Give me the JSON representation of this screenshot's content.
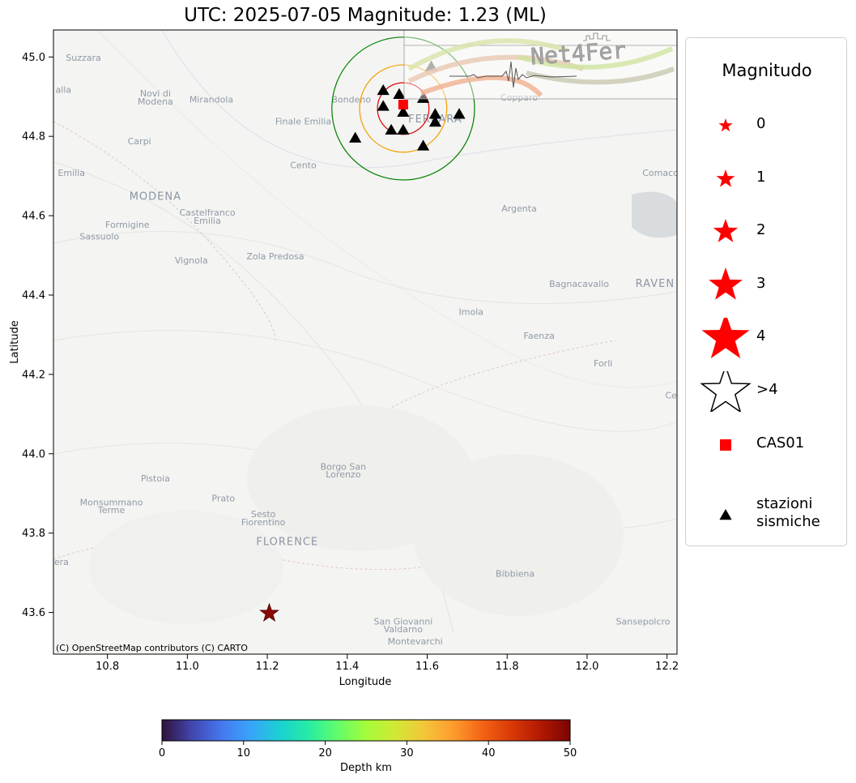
{
  "title": "UTC: 2025-07-05 Magnitude: 1.23 (ML)",
  "map": {
    "xlabel": "Longitude",
    "ylabel": "Latitude",
    "xlim": [
      10.665,
      12.225
    ],
    "ylim": [
      43.495,
      45.068
    ],
    "xticks": [
      "10.8",
      "11.0",
      "11.2",
      "11.4",
      "11.6",
      "11.8",
      "12.0",
      "12.2"
    ],
    "yticks": [
      "43.6",
      "43.8",
      "44.0",
      "44.2",
      "44.4",
      "44.6",
      "44.8",
      "45.0"
    ],
    "attribution": "(C) OpenStreetMap contributors (C) CARTO",
    "basemap_style": "CARTO light",
    "place_labels": [
      {
        "name": "Suzzara",
        "lon": 10.74,
        "lat": 44.99,
        "style": "small"
      },
      {
        "name": "Novi di",
        "lon": 10.92,
        "lat": 44.9,
        "style": "small"
      },
      {
        "name": "Modena",
        "lon": 10.92,
        "lat": 44.88,
        "style": "small"
      },
      {
        "name": "Mirandola",
        "lon": 11.06,
        "lat": 44.885,
        "style": "small"
      },
      {
        "name": "Bondeno",
        "lon": 11.41,
        "lat": 44.885,
        "style": "small"
      },
      {
        "name": "Copparo",
        "lon": 11.83,
        "lat": 44.89,
        "style": "small"
      },
      {
        "name": "Finale Emilia",
        "lon": 11.29,
        "lat": 44.83,
        "style": "small"
      },
      {
        "name": "FERRARA",
        "lon": 11.62,
        "lat": 44.835,
        "style": "big"
      },
      {
        "name": "Carpi",
        "lon": 10.88,
        "lat": 44.78,
        "style": "small"
      },
      {
        "name": "Cento",
        "lon": 11.29,
        "lat": 44.72,
        "style": "small"
      },
      {
        "name": "Emilia",
        "lon": 10.71,
        "lat": 44.7,
        "style": "small"
      },
      {
        "name": "Comacch",
        "lon": 12.19,
        "lat": 44.7,
        "style": "small"
      },
      {
        "name": "MODENA",
        "lon": 10.92,
        "lat": 44.64,
        "style": "big"
      },
      {
        "name": "Castelfranco",
        "lon": 11.05,
        "lat": 44.6,
        "style": "small"
      },
      {
        "name": "Emilia",
        "lon": 11.05,
        "lat": 44.58,
        "style": "small"
      },
      {
        "name": "Argenta",
        "lon": 11.83,
        "lat": 44.61,
        "style": "small"
      },
      {
        "name": "Formigine",
        "lon": 10.85,
        "lat": 44.57,
        "style": "small"
      },
      {
        "name": "Sassuolo",
        "lon": 10.78,
        "lat": 44.54,
        "style": "small"
      },
      {
        "name": "Vignola",
        "lon": 11.01,
        "lat": 44.48,
        "style": "small"
      },
      {
        "name": "Zola Predosa",
        "lon": 11.22,
        "lat": 44.49,
        "style": "small"
      },
      {
        "name": "Bagnacavallo",
        "lon": 11.98,
        "lat": 44.42,
        "style": "small"
      },
      {
        "name": "RAVEN",
        "lon": 12.17,
        "lat": 44.42,
        "style": "big"
      },
      {
        "name": "Imola",
        "lon": 11.71,
        "lat": 44.35,
        "style": "small"
      },
      {
        "name": "Faenza",
        "lon": 11.88,
        "lat": 44.29,
        "style": "small"
      },
      {
        "name": "Forli",
        "lon": 12.04,
        "lat": 44.22,
        "style": "small"
      },
      {
        "name": "Ce",
        "lon": 12.21,
        "lat": 44.14,
        "style": "small"
      },
      {
        "name": "Borgo San",
        "lon": 11.39,
        "lat": 43.96,
        "style": "small"
      },
      {
        "name": "Lorenzo",
        "lon": 11.39,
        "lat": 43.94,
        "style": "small"
      },
      {
        "name": "Pistoia",
        "lon": 10.92,
        "lat": 43.93,
        "style": "small"
      },
      {
        "name": "Monsummano",
        "lon": 10.81,
        "lat": 43.87,
        "style": "small"
      },
      {
        "name": "Terme",
        "lon": 10.81,
        "lat": 43.85,
        "style": "small"
      },
      {
        "name": "Prato",
        "lon": 11.09,
        "lat": 43.88,
        "style": "small"
      },
      {
        "name": "Sesto",
        "lon": 11.19,
        "lat": 43.84,
        "style": "small"
      },
      {
        "name": "Fiorentino",
        "lon": 11.19,
        "lat": 43.82,
        "style": "small"
      },
      {
        "name": "FLORENCE",
        "lon": 11.25,
        "lat": 43.77,
        "style": "big"
      },
      {
        "name": "era",
        "lon": 10.685,
        "lat": 43.72,
        "style": "small"
      },
      {
        "name": "Bibbiena",
        "lon": 11.82,
        "lat": 43.69,
        "style": "small"
      },
      {
        "name": "San Giovanni",
        "lon": 11.54,
        "lat": 43.57,
        "style": "small"
      },
      {
        "name": "Valdarno",
        "lon": 11.54,
        "lat": 43.55,
        "style": "small"
      },
      {
        "name": "Sansepolcro",
        "lon": 12.14,
        "lat": 43.57,
        "style": "small"
      },
      {
        "name": "Montevarchi",
        "lon": 11.57,
        "lat": 43.52,
        "style": "small"
      },
      {
        "name": "alla",
        "lon": 10.69,
        "lat": 44.91,
        "style": "small"
      }
    ],
    "event": {
      "lon": 11.205,
      "lat": 43.598,
      "depth_km": 49,
      "magnitude": 1.23
    },
    "station_main": {
      "name": "CAS01",
      "lon": 11.54,
      "lat": 44.88,
      "color": "#ff0000"
    },
    "stations": [
      {
        "lon": 11.49,
        "lat": 44.915
      },
      {
        "lon": 11.53,
        "lat": 44.905
      },
      {
        "lon": 11.59,
        "lat": 44.895
      },
      {
        "lon": 11.49,
        "lat": 44.875
      },
      {
        "lon": 11.54,
        "lat": 44.86
      },
      {
        "lon": 11.62,
        "lat": 44.855
      },
      {
        "lon": 11.68,
        "lat": 44.855
      },
      {
        "lon": 11.62,
        "lat": 44.835
      },
      {
        "lon": 11.51,
        "lat": 44.815
      },
      {
        "lon": 11.54,
        "lat": 44.815
      },
      {
        "lon": 11.42,
        "lat": 44.795
      },
      {
        "lon": 11.59,
        "lat": 44.775
      },
      {
        "lon": 11.61,
        "lat": 44.975,
        "faded": true
      }
    ],
    "rings": [
      {
        "radius_deg": 0.065,
        "color": "#e00000"
      },
      {
        "radius_deg": 0.11,
        "color": "#f0a000"
      },
      {
        "radius_deg": 0.18,
        "color": "#008000"
      }
    ],
    "ring_center": {
      "lon": 11.54,
      "lat": 44.87
    }
  },
  "logo": {
    "text": "Net4Fer"
  },
  "legend": {
    "title": "Magnitudo",
    "items": [
      {
        "label": "0",
        "symbol": "star",
        "scale": 0.45,
        "color": "#ff0000"
      },
      {
        "label": "1",
        "symbol": "star",
        "scale": 0.6,
        "color": "#ff0000"
      },
      {
        "label": "2",
        "symbol": "star",
        "scale": 0.8,
        "color": "#ff0000"
      },
      {
        "label": "3",
        "symbol": "star",
        "scale": 1.1,
        "color": "#ff0000"
      },
      {
        "label": "4",
        "symbol": "star",
        "scale": 1.55,
        "color": "#ff0000"
      },
      {
        "label": ">4",
        "symbol": "star-outline",
        "scale": 1.55,
        "color": "#000000"
      },
      {
        "label": "CAS01",
        "symbol": "square",
        "scale": 1,
        "color": "#ff0000"
      },
      {
        "label": "stazioni\nsismiche",
        "symbol": "triangle",
        "scale": 1,
        "color": "#000000"
      }
    ]
  },
  "colorbar": {
    "label": "Depth km",
    "min": 0,
    "max": 50,
    "ticks": [
      "0",
      "10",
      "20",
      "30",
      "40",
      "50"
    ],
    "colormap": "turbo",
    "stops": [
      "#30123b",
      "#4145ab",
      "#4675ed",
      "#39a2fc",
      "#1bcfd4",
      "#24eca6",
      "#61fc6c",
      "#a4fc3b",
      "#d1e834",
      "#f3c63a",
      "#fe9b2d",
      "#f36315",
      "#d93806",
      "#b11901",
      "#7a0403"
    ]
  }
}
